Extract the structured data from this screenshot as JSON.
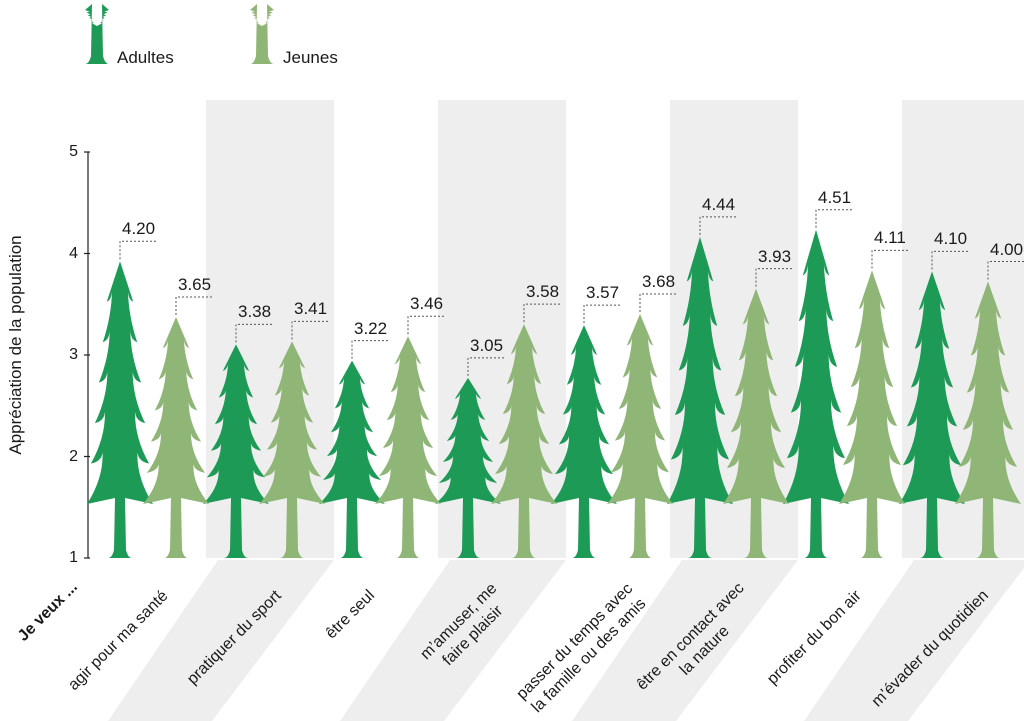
{
  "legend": [
    {
      "name": "Adultes",
      "color": "#1e9a57",
      "icon": "tree-icon"
    },
    {
      "name": "Jeunes",
      "color": "#8fb577",
      "icon": "tree-icon"
    }
  ],
  "prefix_label": "Je veux ...",
  "chart_data": {
    "type": "bar",
    "title": "",
    "ylabel": "Appréciation de la population",
    "xlabel": "",
    "ylim": [
      1,
      5
    ],
    "yticks": [
      "1",
      "2",
      "3",
      "4",
      "5"
    ],
    "categories": [
      "agir pour ma santé",
      "pratiquer du sport",
      "être seul",
      "m’amuser, me\nfaire plaisir",
      "passer du temps avec\nla famille ou des amis",
      "être en contact avec\nla nature",
      "profiter du bon air",
      "m’évader du quotidien"
    ],
    "series": [
      {
        "name": "Adultes",
        "color": "#1e9a57",
        "values": [
          4.2,
          3.38,
          3.22,
          3.05,
          3.57,
          4.44,
          4.51,
          4.1
        ],
        "labels": [
          "4.20",
          "3.38",
          "3.22",
          "3.05",
          "3.57",
          "4.44",
          "4.51",
          "4.10"
        ]
      },
      {
        "name": "Jeunes",
        "color": "#8fb577",
        "values": [
          3.65,
          3.41,
          3.46,
          3.58,
          3.68,
          3.93,
          4.11,
          4.0
        ],
        "labels": [
          "3.65",
          "3.41",
          "3.46",
          "3.58",
          "3.68",
          "3.93",
          "4.11",
          "4.00"
        ]
      }
    ],
    "grid": false,
    "legend_position": "top-left"
  }
}
